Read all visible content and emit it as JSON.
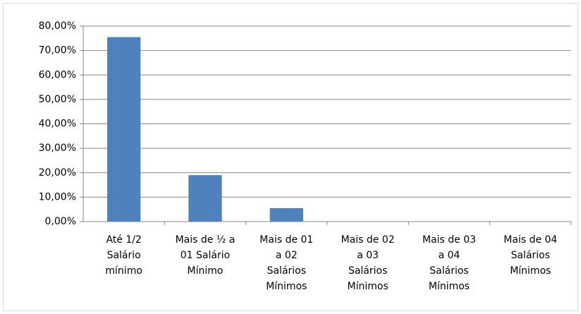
{
  "chart_data": {
    "type": "bar",
    "categories": [
      "Até 1/2\nSalário\nmínimo",
      "Mais de ½ a\n01 Salário\nMínimo",
      "Mais de 01\na 02\nSalários\nMínimos",
      "Mais de 02\na 03\nSalários\nMínimos",
      "Mais de 03\na 04\nSalários\nMínimos",
      "Mais de 04\nSalários\nMínimos"
    ],
    "values": [
      75.5,
      19,
      5.5,
      0,
      0,
      0
    ],
    "color": "#4f81bd",
    "ylim": [
      0,
      80
    ],
    "yticks": [
      {
        "value": 0,
        "label": "0,00%"
      },
      {
        "value": 10,
        "label": "10,00%"
      },
      {
        "value": 20,
        "label": "20,00%"
      },
      {
        "value": 30,
        "label": "30,00%"
      },
      {
        "value": 40,
        "label": "40,00%"
      },
      {
        "value": 50,
        "label": "50,00%"
      },
      {
        "value": 60,
        "label": "60,00%"
      },
      {
        "value": 70,
        "label": "70,00%"
      },
      {
        "value": 80,
        "label": "80,00%"
      }
    ],
    "grid": true
  }
}
